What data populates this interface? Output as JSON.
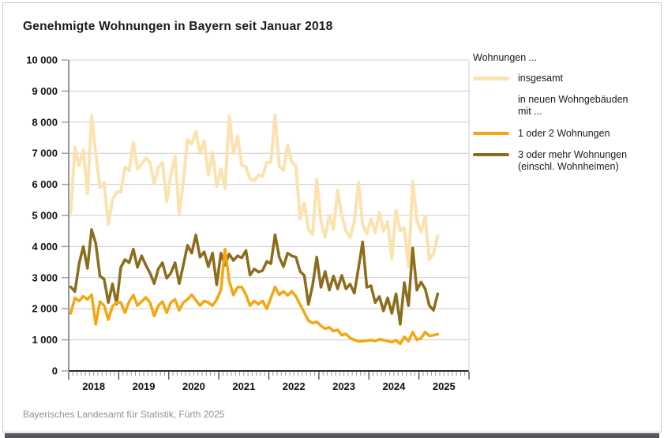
{
  "title": "Genehmigte Wohnungen in Bayern seit Januar 2018",
  "source": "Bayerisches Landesamt für Statistik, Fürth 2025",
  "colors": {
    "insgesamt": "#FAE3B1",
    "ein_zwei": "#F3A712",
    "drei_mehr": "#8C6D1D",
    "grid": "#cccccc",
    "axis": "#2b2b2b",
    "minor_axis": "#999999"
  },
  "legend": {
    "heading": "Wohnungen ...",
    "item_insgesamt": "insgesamt",
    "group_line1": "in neuen Wohngebäuden",
    "group_line2": "mit ...",
    "item_ein_zwei": "1 oder 2 Wohnungen",
    "item_drei_mehr_line1": "3 oder mehr Wohnungen",
    "item_drei_mehr_line2": "(einschl. Wohnheimen)"
  },
  "chart_data": {
    "type": "line",
    "title": "Genehmigte Wohnungen in Bayern seit Januar 2018",
    "x_unit": "month",
    "x_start": "2018-01",
    "x_end": "2025-05",
    "x_axis_years": [
      "2018",
      "2019",
      "2020",
      "2021",
      "2022",
      "2023",
      "2024",
      "2025"
    ],
    "x_total_months": 96,
    "ylim": [
      0,
      10000
    ],
    "y_tick_step": 1000,
    "y_tick_labels": [
      "0",
      "1 000",
      "2 000",
      "3 000",
      "4 000",
      "5 000",
      "6 000",
      "7 000",
      "8 000",
      "9 000",
      "10 000"
    ],
    "grid": "horizontal",
    "legend_position": "right",
    "series": [
      {
        "name": "insgesamt",
        "color": "insgesamt",
        "values": [
          5100,
          7200,
          6600,
          7100,
          5700,
          8200,
          7000,
          5900,
          6050,
          4700,
          5500,
          5750,
          5750,
          6550,
          6450,
          7350,
          6500,
          6650,
          6850,
          6700,
          6000,
          6550,
          6700,
          5450,
          6300,
          6900,
          5050,
          6100,
          7430,
          7300,
          7700,
          7000,
          7400,
          6300,
          7030,
          5930,
          6500,
          5860,
          8190,
          7000,
          7540,
          6620,
          6560,
          6170,
          6120,
          6300,
          6250,
          6700,
          6720,
          8230,
          6580,
          6450,
          7260,
          6710,
          6580,
          4890,
          5400,
          4550,
          4390,
          6160,
          4800,
          4300,
          5000,
          4550,
          5820,
          5000,
          4500,
          4300,
          4800,
          6050,
          4700,
          4400,
          4890,
          4440,
          5100,
          4500,
          4800,
          3620,
          5170,
          4510,
          4600,
          3350,
          6100,
          4850,
          4470,
          4970,
          3580,
          3780,
          4340
        ]
      },
      {
        "name": "1 oder 2 Wohnungen",
        "color": "ein_zwei",
        "values": [
          1850,
          2350,
          2250,
          2400,
          2300,
          2450,
          1500,
          2230,
          2100,
          1650,
          2080,
          2200,
          2200,
          1870,
          2230,
          2440,
          2100,
          2230,
          2360,
          2200,
          1770,
          2100,
          2230,
          1870,
          2200,
          2300,
          1950,
          2200,
          2300,
          2450,
          2270,
          2100,
          2250,
          2200,
          2100,
          2300,
          2600,
          3920,
          2900,
          2440,
          2690,
          2700,
          2450,
          2100,
          2250,
          2150,
          2250,
          2000,
          2350,
          2700,
          2450,
          2560,
          2430,
          2560,
          2400,
          2130,
          1880,
          1620,
          1540,
          1580,
          1450,
          1360,
          1400,
          1280,
          1320,
          1150,
          1190,
          1060,
          1000,
          950,
          960,
          975,
          990,
          960,
          1020,
          990,
          960,
          925,
          990,
          870,
          1100,
          955,
          1250,
          1000,
          1050,
          1250,
          1125,
          1150,
          1180
        ]
      },
      {
        "name": "3 oder mehr Wohnungen (einschl. Wohnheimen)",
        "color": "drei_mehr",
        "values": [
          2700,
          2550,
          3450,
          4000,
          3300,
          4550,
          4100,
          3050,
          2950,
          2200,
          2800,
          2150,
          3330,
          3580,
          3480,
          3915,
          3330,
          3700,
          3400,
          3150,
          2810,
          3280,
          3480,
          2980,
          3150,
          3480,
          2810,
          3400,
          4040,
          3790,
          4370,
          3660,
          3830,
          3350,
          3790,
          2770,
          3790,
          3400,
          3760,
          3550,
          3700,
          3640,
          3870,
          3080,
          3280,
          3180,
          3230,
          3520,
          3450,
          4380,
          3660,
          3350,
          3790,
          3700,
          3660,
          3200,
          3070,
          2140,
          2760,
          3660,
          2690,
          3200,
          2600,
          3050,
          2640,
          3070,
          2640,
          2790,
          2500,
          3300,
          4150,
          2690,
          2740,
          2200,
          2390,
          1930,
          2350,
          1850,
          2480,
          1500,
          2840,
          2100,
          3950,
          2600,
          2860,
          2640,
          2100,
          1950,
          2480
        ]
      }
    ]
  }
}
